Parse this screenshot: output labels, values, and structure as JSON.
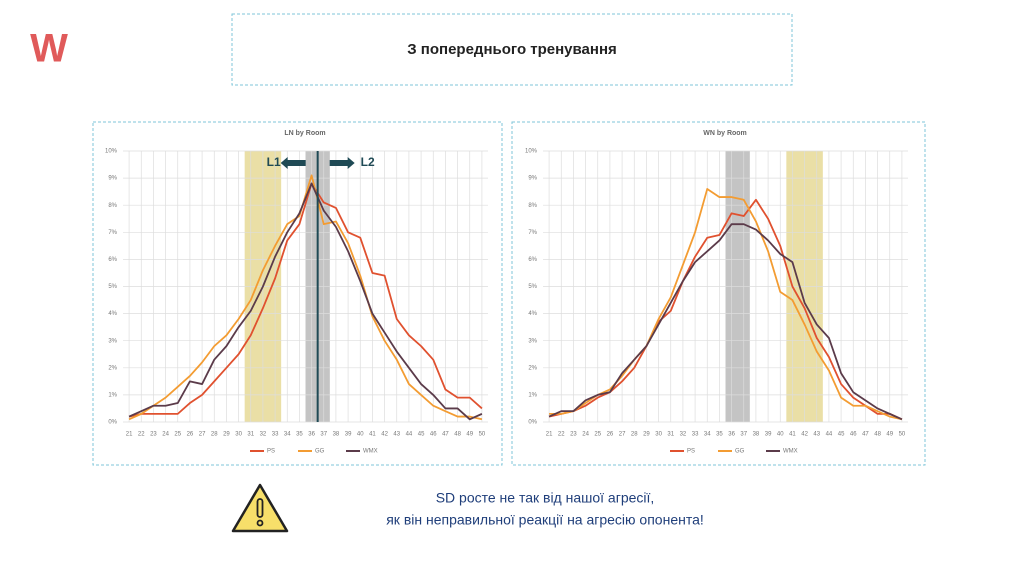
{
  "logo": "W",
  "header": {
    "title": "З попереднього тренування"
  },
  "callout": {
    "lines": [
      "SD росте не так від нашої агресії,",
      "як він неправильної реакції на агресію опонента!"
    ]
  },
  "chart_data": [
    {
      "type": "line",
      "title": "LN by Room",
      "x": [
        21,
        22,
        23,
        24,
        25,
        26,
        27,
        28,
        29,
        30,
        31,
        32,
        33,
        34,
        35,
        36,
        37,
        38,
        39,
        40,
        41,
        42,
        43,
        44,
        45,
        46,
        47,
        48,
        49,
        50
      ],
      "xlim": [
        20.5,
        50.5
      ],
      "xticks": [
        21,
        22,
        23,
        24,
        25,
        26,
        27,
        28,
        29,
        30,
        31,
        32,
        33,
        34,
        35,
        36,
        37,
        38,
        39,
        40,
        41,
        42,
        43,
        44,
        45,
        46,
        47,
        48,
        49,
        50
      ],
      "ylim": [
        0,
        10
      ],
      "yticks": [
        {
          "value": 0,
          "label": "0%"
        },
        {
          "value": 1,
          "label": "1%"
        },
        {
          "value": 2,
          "label": "2%"
        },
        {
          "value": 3,
          "label": "3%"
        },
        {
          "value": 4,
          "label": "4%"
        },
        {
          "value": 5,
          "label": "5%"
        },
        {
          "value": 6,
          "label": "6%"
        },
        {
          "value": 7,
          "label": "7%"
        },
        {
          "value": 8,
          "label": "8%"
        },
        {
          "value": 9,
          "label": "9%"
        },
        {
          "value": 10,
          "label": "10%"
        }
      ],
      "grid": true,
      "bands": [
        {
          "from": 30.5,
          "to": 33.5,
          "color": "#eadfa6"
        },
        {
          "from": 35.5,
          "to": 37.5,
          "color": "#c4c4c4"
        }
      ],
      "vline": {
        "x": 36.5,
        "color": "#1f4a55",
        "labels": [
          "L1",
          "L2"
        ]
      },
      "series": [
        {
          "name": "PS",
          "color": "#e0512f",
          "values": [
            0.2,
            0.3,
            0.3,
            0.3,
            0.3,
            0.7,
            1.0,
            1.5,
            2.0,
            2.5,
            3.2,
            4.2,
            5.3,
            6.7,
            7.3,
            8.8,
            8.1,
            7.9,
            7.0,
            6.8,
            5.5,
            5.4,
            3.8,
            3.2,
            2.8,
            2.3,
            1.2,
            0.9,
            0.9,
            0.5
          ]
        },
        {
          "name": "GG",
          "color": "#f39c32",
          "values": [
            0.1,
            0.3,
            0.6,
            0.9,
            1.3,
            1.7,
            2.2,
            2.8,
            3.2,
            3.8,
            4.5,
            5.6,
            6.5,
            7.3,
            7.6,
            9.1,
            7.3,
            7.4,
            6.6,
            5.4,
            3.9,
            3.0,
            2.3,
            1.4,
            1.0,
            0.6,
            0.4,
            0.2,
            0.2,
            0.1
          ]
        },
        {
          "name": "WMX",
          "color": "#5b3b4a",
          "values": [
            0.2,
            0.4,
            0.6,
            0.6,
            0.7,
            1.5,
            1.4,
            2.3,
            2.8,
            3.5,
            4.1,
            5.0,
            6.1,
            7.0,
            7.7,
            8.8,
            7.8,
            7.2,
            6.3,
            5.2,
            4.0,
            3.3,
            2.6,
            2.0,
            1.4,
            1.0,
            0.5,
            0.5,
            0.1,
            0.3
          ]
        }
      ]
    },
    {
      "type": "line",
      "title": "WN by Room",
      "x": [
        21,
        22,
        23,
        24,
        25,
        26,
        27,
        28,
        29,
        30,
        31,
        32,
        33,
        34,
        35,
        36,
        37,
        38,
        39,
        40,
        41,
        42,
        43,
        44,
        45,
        46,
        47,
        48,
        49,
        50
      ],
      "xlim": [
        20.5,
        50.5
      ],
      "xticks": [
        21,
        22,
        23,
        24,
        25,
        26,
        27,
        28,
        29,
        30,
        31,
        32,
        33,
        34,
        35,
        36,
        37,
        38,
        39,
        40,
        41,
        42,
        43,
        44,
        45,
        46,
        47,
        48,
        49,
        50
      ],
      "ylim": [
        0,
        10
      ],
      "yticks": [
        {
          "value": 0,
          "label": "0%"
        },
        {
          "value": 1,
          "label": "1%"
        },
        {
          "value": 2,
          "label": "2%"
        },
        {
          "value": 3,
          "label": "3%"
        },
        {
          "value": 4,
          "label": "4%"
        },
        {
          "value": 5,
          "label": "5%"
        },
        {
          "value": 6,
          "label": "6%"
        },
        {
          "value": 7,
          "label": "7%"
        },
        {
          "value": 8,
          "label": "8%"
        },
        {
          "value": 9,
          "label": "9%"
        },
        {
          "value": 10,
          "label": "10%"
        }
      ],
      "grid": true,
      "bands": [
        {
          "from": 35.5,
          "to": 37.5,
          "color": "#c4c4c4"
        },
        {
          "from": 40.5,
          "to": 43.5,
          "color": "#eadfa6"
        }
      ],
      "series": [
        {
          "name": "PS",
          "color": "#e0512f",
          "values": [
            0.2,
            0.3,
            0.4,
            0.6,
            0.9,
            1.1,
            1.5,
            2.0,
            2.8,
            3.7,
            4.1,
            5.2,
            6.1,
            6.8,
            6.9,
            7.7,
            7.6,
            8.2,
            7.5,
            6.5,
            5.0,
            4.2,
            3.1,
            2.4,
            1.4,
            0.9,
            0.6,
            0.3,
            0.3,
            0.1
          ]
        },
        {
          "name": "GG",
          "color": "#f39c32",
          "values": [
            0.3,
            0.3,
            0.4,
            0.7,
            1.0,
            1.2,
            1.7,
            2.3,
            2.8,
            3.8,
            4.6,
            5.8,
            7.0,
            8.6,
            8.3,
            8.3,
            8.2,
            7.4,
            6.3,
            4.8,
            4.5,
            3.6,
            2.6,
            1.9,
            0.9,
            0.6,
            0.6,
            0.4,
            0.2,
            0.1
          ]
        },
        {
          "name": "WMX",
          "color": "#5b3b4a",
          "values": [
            0.2,
            0.4,
            0.4,
            0.8,
            1.0,
            1.1,
            1.8,
            2.3,
            2.8,
            3.6,
            4.4,
            5.2,
            5.9,
            6.3,
            6.7,
            7.3,
            7.3,
            7.1,
            6.7,
            6.2,
            5.9,
            4.4,
            3.6,
            3.1,
            1.8,
            1.1,
            0.8,
            0.5,
            0.3,
            0.1
          ]
        }
      ]
    }
  ]
}
